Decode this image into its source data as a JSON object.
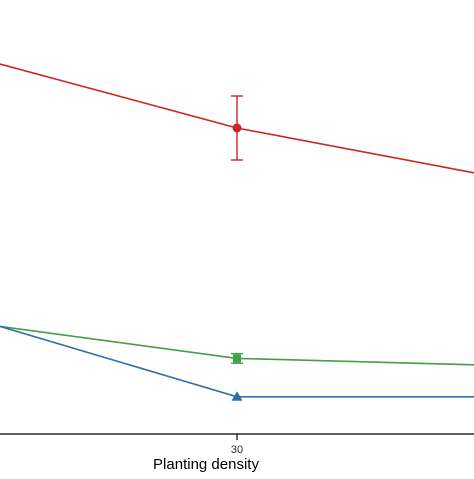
{
  "chart_data": {
    "type": "line",
    "xlabel": "Planting density",
    "x": [
      15,
      30,
      45
    ],
    "x_ticks": [
      30
    ],
    "xlim": [
      15,
      45
    ],
    "ylim": [
      0,
      11
    ],
    "grid": false,
    "series": [
      {
        "color": "#c62828",
        "marker": "circle",
        "values": [
          11.0,
          9.0,
          7.6
        ],
        "error": [
          null,
          1.0,
          null
        ]
      },
      {
        "color": "#43a047",
        "marker": "square",
        "values": [
          2.8,
          1.8,
          1.6
        ],
        "error": [
          null,
          0.15,
          null
        ]
      },
      {
        "color": "#2e6fa8",
        "marker": "triangle",
        "values": [
          2.8,
          0.6,
          0.6
        ],
        "error": [
          null,
          null,
          null
        ]
      }
    ]
  }
}
